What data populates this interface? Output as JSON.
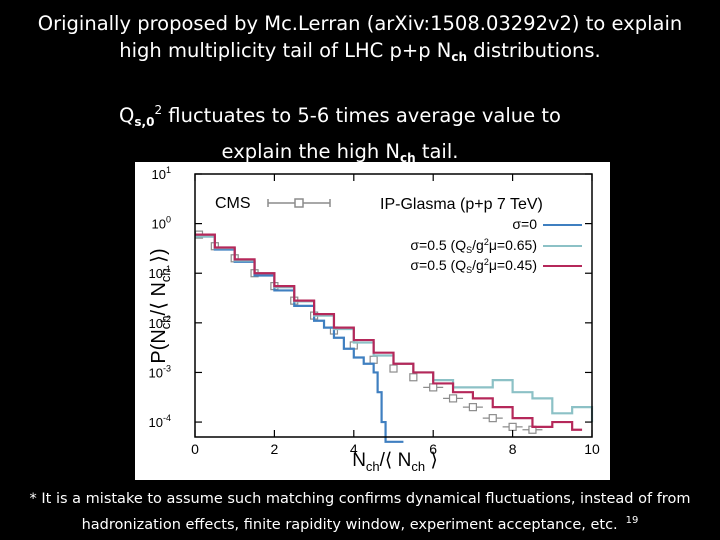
{
  "slide": {
    "heading_line1": "Originally proposed by Mc.Lerran (arXiv:1508.03292v2)  to explain",
    "heading_line2_pre": "high multiplicity tail of LHC p+p N",
    "heading_line2_sub": "ch",
    "heading_line2_post": " distributions.",
    "sub_q": "Q",
    "sub_q_sub": "s,0",
    "sub_q_sup": "2",
    "sub_line1_post": " fluctuates to 5-6 times average value to",
    "sub_line2_pre": "explain the high N",
    "sub_line2_sub": "ch",
    "sub_line2_post": " tail.",
    "footnote_line1": "* It is a mistake to assume such matching confirms dynamical fluctuations, instead of from",
    "footnote_line2": "hadronization effects, finite rapidity window, experiment acceptance, etc.",
    "slide_number": "19"
  },
  "chart_data": {
    "type": "line",
    "y_scale": "log",
    "xlim": [
      0,
      10
    ],
    "ylim": [
      5e-05,
      10
    ],
    "x_ticks": [
      "0",
      "2",
      "4",
      "6",
      "8",
      "10"
    ],
    "y_ticks": [
      {
        "base": "10",
        "exp": "1"
      },
      {
        "base": "10",
        "exp": "0"
      },
      {
        "base": "10",
        "exp": "-1"
      },
      {
        "base": "10",
        "exp": "-2"
      },
      {
        "base": "10",
        "exp": "-3"
      },
      {
        "base": "10",
        "exp": "-4"
      }
    ],
    "xlabel": {
      "main": "N",
      "sub1": "ch",
      "mid": "/⟨ N",
      "sub2": "ch",
      "end": " ⟩"
    },
    "ylabel": {
      "pre": "P(N",
      "sub1": "ch",
      "mid": "/⟨ N",
      "sub2": "ch",
      "end": " ⟩)"
    },
    "legend_cms": "CMS",
    "legend_title": "IP-Glasma (p+p 7 TeV)",
    "series": [
      {
        "name": "CMS",
        "color": "#8c8c8c",
        "x": [
          0.1,
          0.5,
          1.0,
          1.5,
          2.0,
          2.5,
          3.0,
          3.5,
          4.0,
          4.5,
          5.0,
          5.5,
          6.0,
          6.5,
          7.0,
          7.5,
          8.0,
          8.5
        ],
        "y": [
          0.6,
          0.35,
          0.2,
          0.1,
          0.055,
          0.028,
          0.014,
          0.007,
          0.0035,
          0.0018,
          0.0012,
          0.0008,
          0.0005,
          0.0003,
          0.0002,
          0.00012,
          8e-05,
          7e-05
        ]
      },
      {
        "name": "σ=0",
        "color": "#3f7fc0",
        "x": [
          0.0,
          0.5,
          1.0,
          1.5,
          2.0,
          2.5,
          3.0,
          3.25,
          3.5,
          3.75,
          4.0,
          4.25,
          4.5,
          4.6,
          4.7,
          4.8,
          5.0
        ],
        "y": [
          0.55,
          0.3,
          0.17,
          0.09,
          0.045,
          0.022,
          0.011,
          0.008,
          0.005,
          0.003,
          0.002,
          0.0015,
          0.001,
          0.0004,
          0.0001,
          4e-05,
          4e-05
        ]
      },
      {
        "name": "σ=0.5 (Q_S/g²μ=0.65)",
        "label_pre": "σ=0.5 (Q",
        "label_sub": "S",
        "label_mid": "/g",
        "label_sup": "2",
        "label_post": "μ=0.65)",
        "color": "#8cc1c6",
        "x": [
          0.0,
          0.5,
          1.0,
          1.5,
          2.0,
          2.5,
          3.0,
          3.5,
          4.0,
          4.5,
          5.0,
          5.5,
          6.0,
          6.5,
          7.0,
          7.5,
          8.0,
          8.5,
          9.0,
          9.5,
          10.0
        ],
        "y": [
          0.55,
          0.32,
          0.18,
          0.1,
          0.052,
          0.027,
          0.014,
          0.0075,
          0.004,
          0.0022,
          0.0015,
          0.001,
          0.0007,
          0.0005,
          0.0005,
          0.0007,
          0.0004,
          0.0003,
          0.00015,
          0.0002,
          0.0001
        ]
      },
      {
        "name": "σ=0.5 (Q_S/g²μ=0.45)",
        "label_pre": "σ=0.5 (Q",
        "label_sub": "S",
        "label_mid": "/g",
        "label_sup": "2",
        "label_post": "μ=0.45)",
        "color": "#b5285a",
        "x": [
          0.0,
          0.5,
          1.0,
          1.5,
          2.0,
          2.5,
          3.0,
          3.5,
          4.0,
          4.5,
          5.0,
          5.5,
          6.0,
          6.5,
          7.0,
          7.5,
          8.0,
          8.5,
          9.0,
          9.5
        ],
        "y": [
          0.6,
          0.33,
          0.19,
          0.1,
          0.055,
          0.028,
          0.015,
          0.008,
          0.0045,
          0.0025,
          0.0015,
          0.001,
          0.0006,
          0.0004,
          0.0003,
          0.0002,
          0.00012,
          8e-05,
          0.0001,
          7e-05
        ]
      }
    ],
    "legend": {
      "sigma0": {
        "label": "σ=0"
      }
    }
  }
}
